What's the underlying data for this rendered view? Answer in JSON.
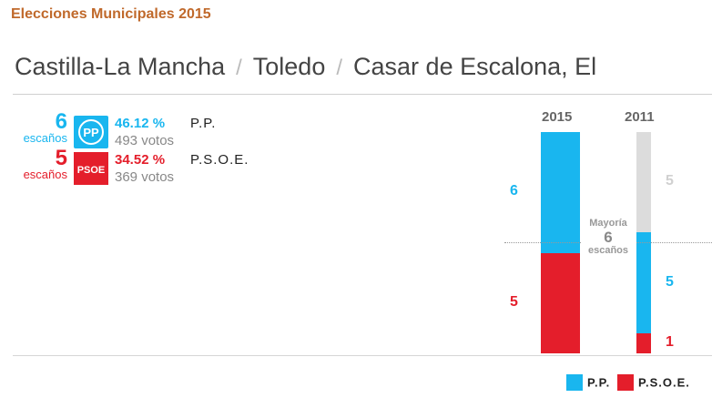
{
  "header": {
    "title": "Elecciones Municipales 2015"
  },
  "breadcrumb": {
    "items": [
      "Castilla-La Mancha",
      "Toledo",
      "Casar de Escalona, El"
    ],
    "separator": "/"
  },
  "parties": [
    {
      "seats": "6",
      "seats_label": "escaños",
      "logo_text": "PP",
      "pct": "46.12 %",
      "name": "P.P.",
      "votes": "493 votos",
      "color": "#19b6ef"
    },
    {
      "seats": "5",
      "seats_label": "escaños",
      "logo_text": "PSOE",
      "pct": "34.52 %",
      "name": "P.S.O.E.",
      "votes": "369 votos",
      "color": "#e41e2b"
    }
  ],
  "chart_data": {
    "type": "bar",
    "categories": [
      "2015",
      "2011"
    ],
    "total_seats": 11,
    "majority": {
      "label": "Mayoría",
      "value": 6,
      "unit": "escaños"
    },
    "series": [
      {
        "name": "P.P.",
        "color": "#19b6ef",
        "values": [
          6,
          5
        ]
      },
      {
        "name": "P.S.O.E.",
        "color": "#e41e2b",
        "values": [
          5,
          1
        ]
      },
      {
        "name": "",
        "color": "#dcdcdc",
        "values": [
          0,
          5
        ]
      }
    ]
  },
  "legend": [
    {
      "label": "P.P.",
      "color": "#19b6ef"
    },
    {
      "label": "P.S.O.E.",
      "color": "#e41e2b"
    }
  ]
}
